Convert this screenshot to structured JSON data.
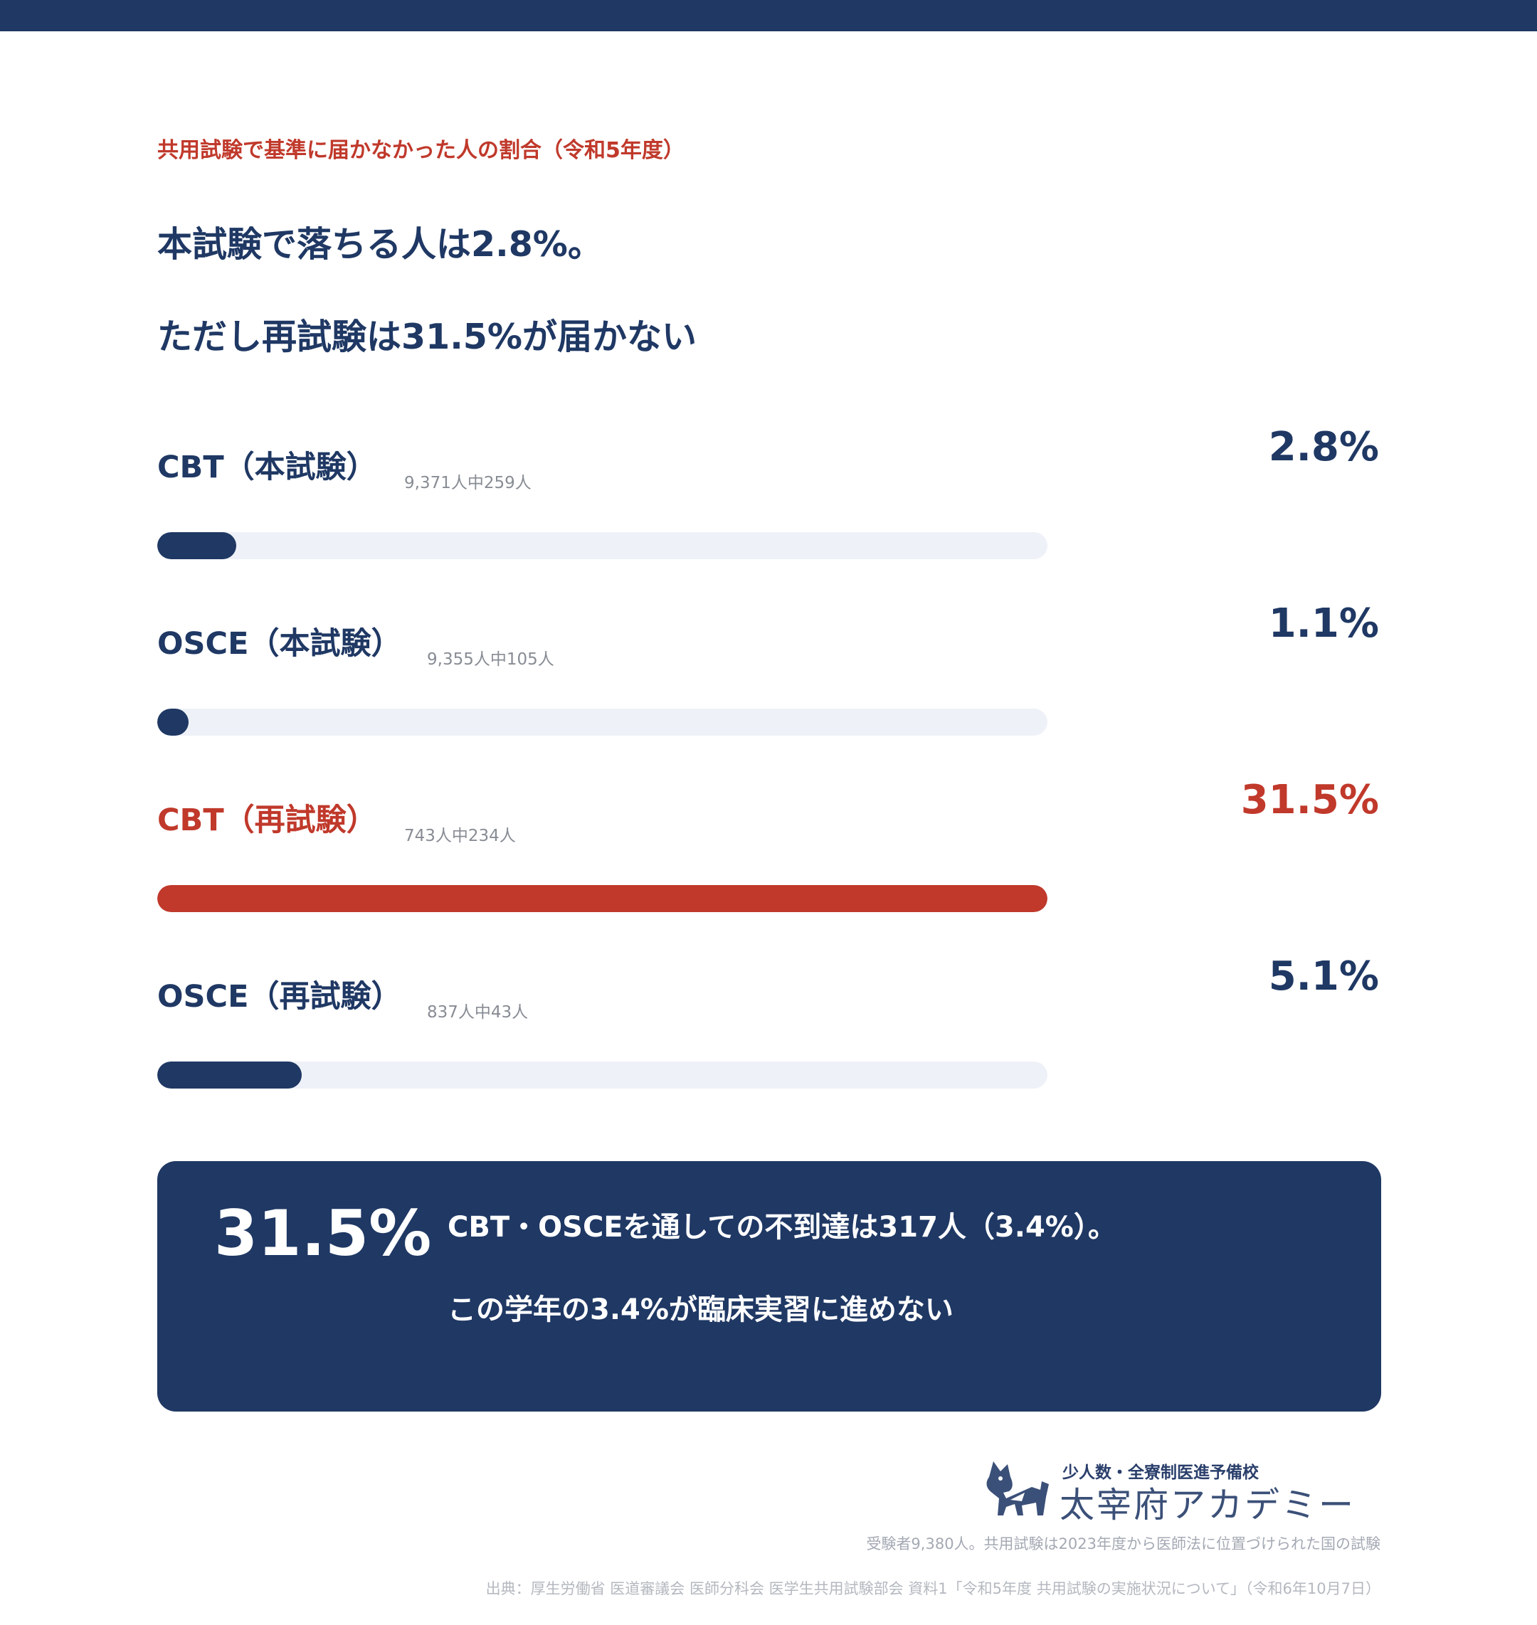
{
  "colors": {
    "navy": "#1f3864",
    "red": "#c0392b",
    "track": "#eef1f7"
  },
  "header": {
    "eyebrow": "共用試験で基準に届かなかった人の割合（令和5年度）",
    "headline_1": "本試験で落ちる人は2.8%。",
    "headline_2": "ただし再試験は31.5%が届かない"
  },
  "chart_data": {
    "type": "bar",
    "orientation": "horizontal",
    "scale_max": 31.5,
    "categories": [
      "CBT（本試験）",
      "OSCE（本試験）",
      "CBT（再試験）",
      "OSCE（再試験）"
    ],
    "values": [
      2.8,
      1.1,
      31.5,
      5.1
    ],
    "value_labels": [
      "2.8%",
      "1.1%",
      "31.5%",
      "5.1%"
    ],
    "sub_labels": [
      "9,371人中259人",
      "9,355人中105人",
      "743人中234人",
      "837人中43人"
    ],
    "highlight": [
      false,
      false,
      true,
      false
    ]
  },
  "summary": {
    "big_value": "31.5%",
    "line_1": "CBT・OSCEを通しての不到達は317人（3.4%）。",
    "line_2": "この学年の3.4%が臨床実習に進めない"
  },
  "logo": {
    "tagline": "少人数・全寮制医進予備校",
    "name": "太宰府アカデミー",
    "icon": "shiba-dog-logo-icon"
  },
  "footer": {
    "note": "受験者9,380人。共用試験は2023年度から医師法に位置づけられた国の試験",
    "source": "出典：厚生労働省 医道審議会 医師分科会 医学生共用試験部会 資料1「令和5年度 共用試験の実施状況について」（令和6年10月7日）"
  }
}
